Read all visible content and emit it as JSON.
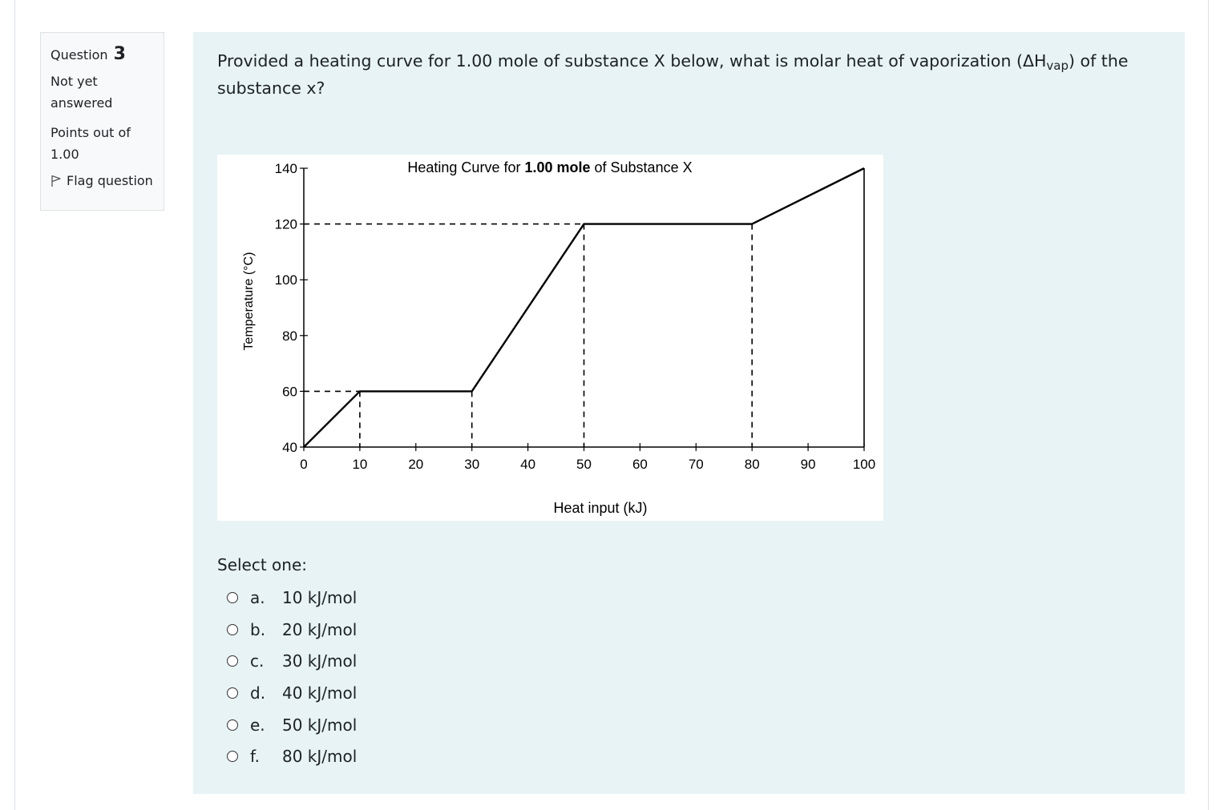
{
  "question_info": {
    "label": "Question",
    "number": "3",
    "state": "Not yet answered",
    "grade": "Points out of 1.00",
    "flag_label": "Flag question"
  },
  "question": {
    "text_before": "Provided a heating curve for 1.00 mole of substance X below, what is molar heat of vaporization (ΔH",
    "subscript": "vap",
    "text_after": ") of the substance x?"
  },
  "chart_data": {
    "type": "line",
    "title_plain": "Heating Curve for ",
    "title_bold": "1.00 mole",
    "title_end": " of Substance X",
    "xlabel": "Heat input (kJ)",
    "ylabel": "Temperature (°C)",
    "xlim": [
      0,
      100
    ],
    "ylim": [
      40,
      140
    ],
    "x_ticks": [
      0,
      10,
      20,
      30,
      40,
      50,
      60,
      70,
      80,
      90,
      100
    ],
    "y_ticks": [
      40,
      60,
      80,
      100,
      120,
      140
    ],
    "series": [
      {
        "x": [
          0,
          10,
          30,
          50,
          80,
          100
        ],
        "y": [
          40,
          60,
          60,
          120,
          120,
          140
        ]
      }
    ],
    "grid": false
  },
  "answer": {
    "prompt": "Select one:",
    "options": [
      {
        "letter": "a.",
        "text": "10 kJ/mol"
      },
      {
        "letter": "b.",
        "text": "20 kJ/mol"
      },
      {
        "letter": "c.",
        "text": "30 kJ/mol"
      },
      {
        "letter": "d.",
        "text": "40 kJ/mol"
      },
      {
        "letter": "e.",
        "text": "50 kJ/mol"
      },
      {
        "letter": "f.",
        "text": "80 kJ/mol"
      }
    ]
  }
}
